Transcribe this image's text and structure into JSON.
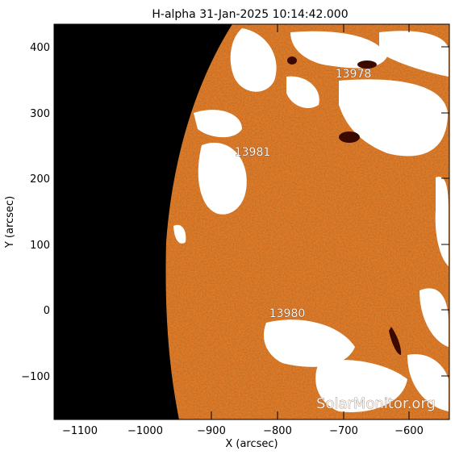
{
  "title": "H-alpha 31-Jan-2025 10:14:42.000",
  "xlabel": "X (arcsec)",
  "ylabel": "Y (arcsec)",
  "x_ticks": [
    "−1100",
    "−1000",
    "−900",
    "−800",
    "−700",
    "−600"
  ],
  "y_ticks": [
    "400",
    "300",
    "200",
    "100",
    "0",
    "−100"
  ],
  "regions": [
    "13978",
    "13981",
    "13980"
  ],
  "watermark": "SolarMonitor.org",
  "colors": {
    "space": "#000000",
    "disk": "#e07a28",
    "disk_dark": "#b84a10",
    "plage": "#ffffff",
    "sunspot": "#3a0a00"
  }
}
